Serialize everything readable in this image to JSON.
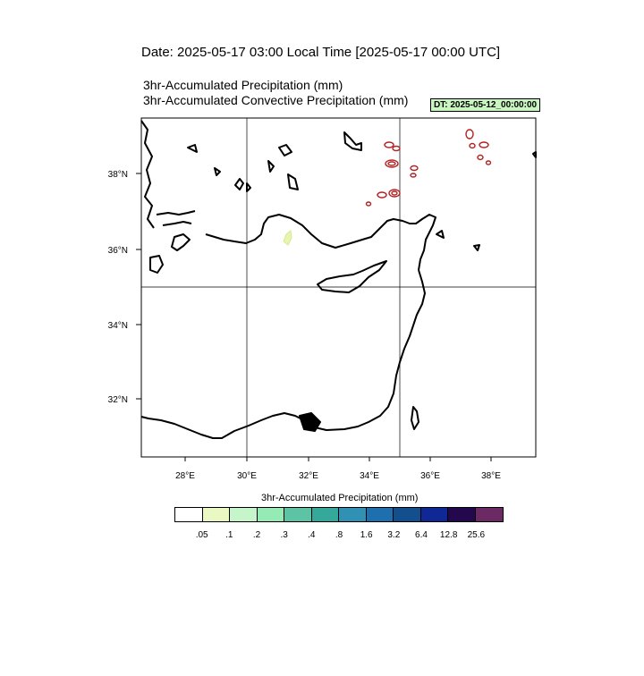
{
  "header": {
    "date_line": "Date: 2025-05-17  03:00 Local Time [2025-05-17  00:00 UTC]",
    "title_line_1": "3hr-Accumulated Precipitation   (mm)",
    "title_line_2": "3hr-Accumulated Convective Precipitation   (mm)",
    "dt_badge": "DT: 2025-05-12_00:00:00"
  },
  "map": {
    "lon_ticks": [
      "28°E",
      "30°E",
      "32°E",
      "34°E",
      "36°E",
      "38°E"
    ],
    "lat_ticks": [
      "38°N",
      "36°N",
      "34°N",
      "32°N"
    ],
    "coast_color": "#000000",
    "contour_color": "#b22222",
    "precip_patch_color": "#e6f5b0"
  },
  "colorbar": {
    "title": "3hr-Accumulated Precipitation   (mm)",
    "colors": [
      "#ffffff",
      "#eaf8c4",
      "#c6f5cc",
      "#96ebb5",
      "#5cc3a4",
      "#35a89c",
      "#3191b4",
      "#1e6fae",
      "#124f8c",
      "#102896",
      "#23084e",
      "#6b2a63"
    ],
    "labels": [
      ".05",
      ".1",
      ".2",
      ".3",
      ".4",
      ".8",
      "1.6",
      "3.2",
      "6.4",
      "12.8",
      "25.6"
    ]
  }
}
